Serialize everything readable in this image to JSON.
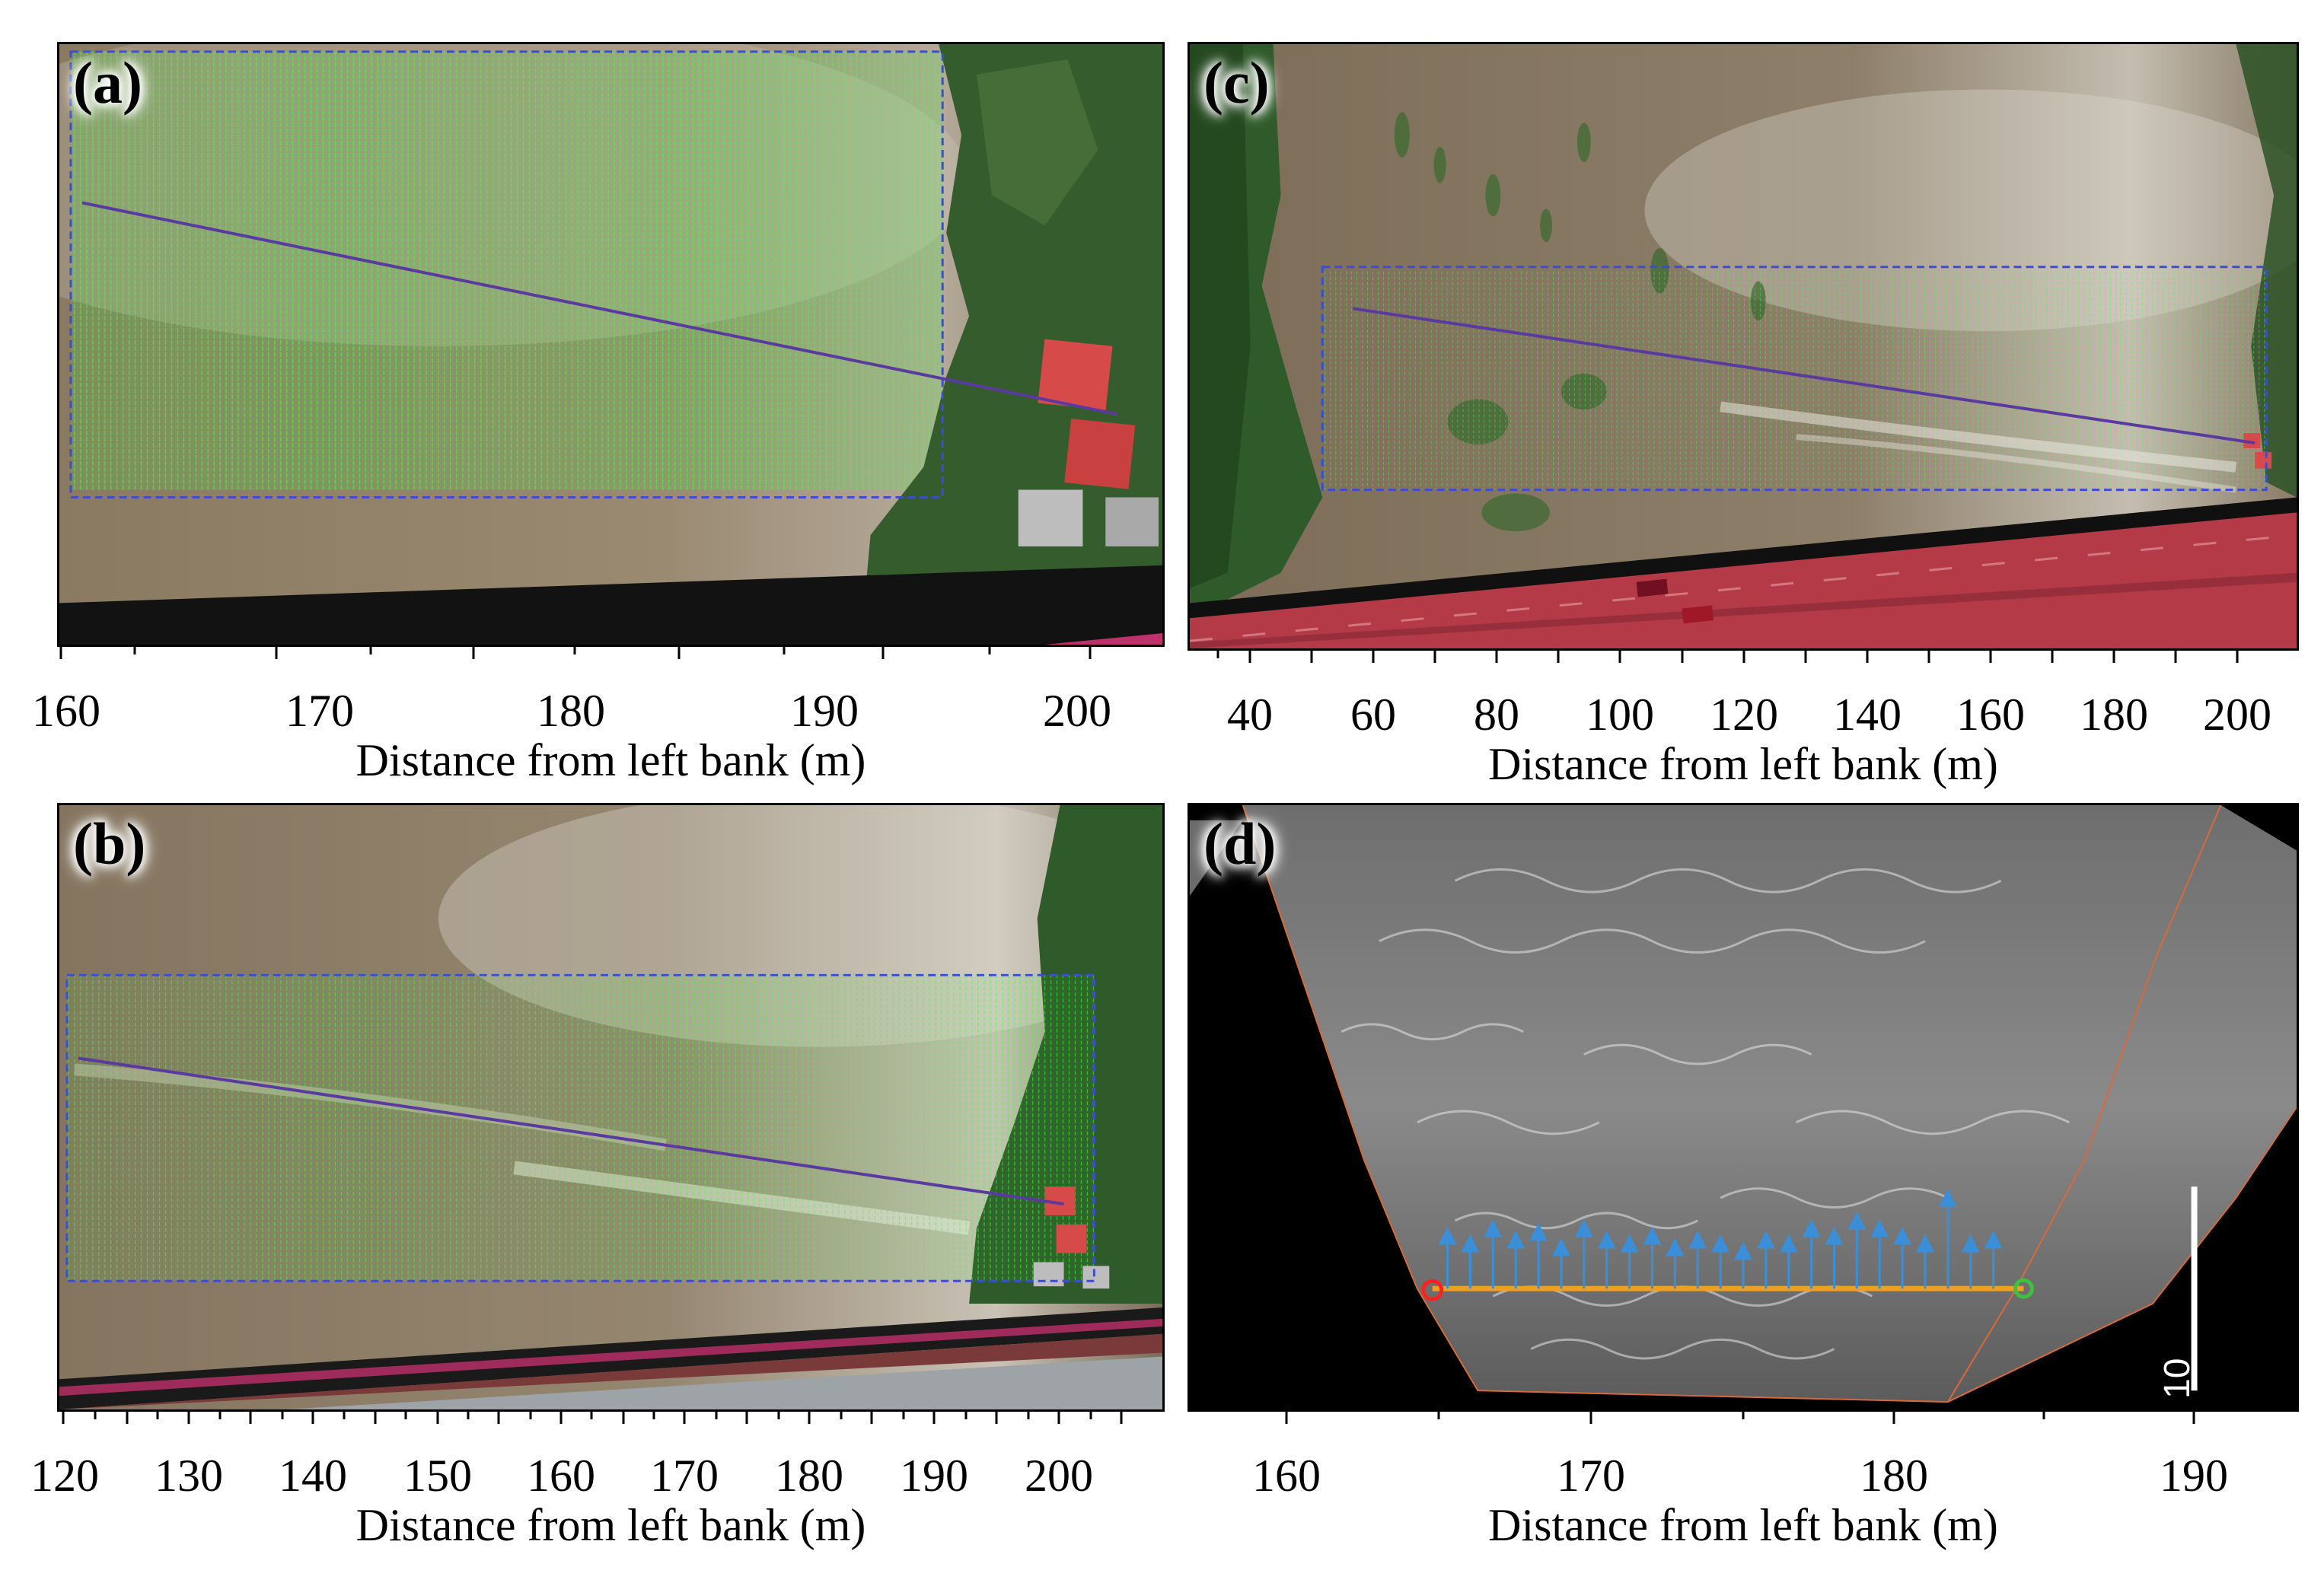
{
  "panels": {
    "a": {
      "label": "(a)",
      "ticks": [
        "160",
        "170",
        "180",
        "190",
        "200"
      ],
      "xlabel": "Distance from left bank (m)"
    },
    "b": {
      "label": "(b)",
      "ticks": [
        "120",
        "130",
        "140",
        "150",
        "160",
        "170",
        "180",
        "190",
        "200"
      ],
      "xlabel": "Distance from left bank (m)"
    },
    "c": {
      "label": "(c)",
      "ticks": [
        "40",
        "60",
        "80",
        "100",
        "120",
        "140",
        "160",
        "180",
        "200"
      ],
      "xlabel": "Distance from left bank (m)"
    },
    "d": {
      "label": "(d)",
      "ticks": [
        "160",
        "170",
        "180",
        "190"
      ],
      "xlabel": "Distance from left bank (m)",
      "scale_bar_label": "10"
    }
  },
  "colors": {
    "water": "#7a6a55",
    "vegetation": "#2f5a2a",
    "vectors_green": "#3cff3c",
    "roi_dashed": "#3a4fd0",
    "transect": "#5a3aa0",
    "roof_red": "#d64a4a",
    "bridge": "#b03040",
    "vectors_blue": "#3a8fd8",
    "transect_orange": "#f0a020",
    "start_marker": "#ff2020",
    "end_marker": "#40c040"
  }
}
